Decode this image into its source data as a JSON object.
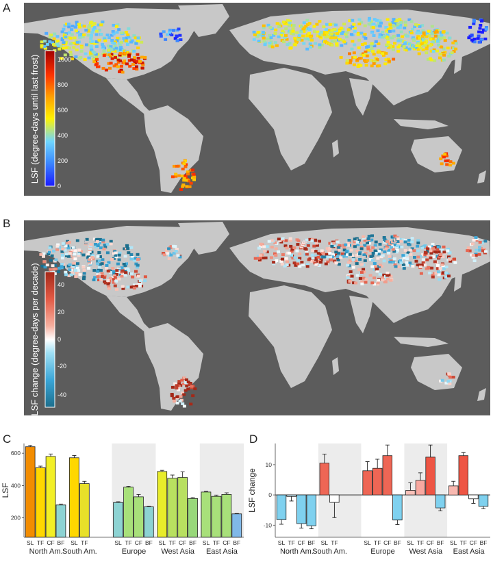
{
  "panels": {
    "a": "A",
    "b": "B",
    "c": "C",
    "d": "D"
  },
  "colors": {
    "ocean": "#5c5c5c",
    "land": "#c8c8c8",
    "no_data_bg": "#ececec"
  },
  "map_a": {
    "legend_title": "LSF (degree-days until last frost)",
    "legend_ticks": [
      "0",
      "200",
      "400",
      "600",
      "800",
      "1000"
    ],
    "legend_range": [
      0,
      1050
    ],
    "colormap": [
      "#1a1aff",
      "#3d8dff",
      "#6fd6ff",
      "#fff200",
      "#ffa000",
      "#ff3300",
      "#a30000"
    ]
  },
  "map_b": {
    "legend_title": "LSF change (degree-days per decade)",
    "legend_ticks": [
      "-40",
      "-20",
      "0",
      "20",
      "40"
    ],
    "legend_range": [
      -48,
      48
    ],
    "colormap": [
      "#1c6e8c",
      "#3aa6d8",
      "#9fe0f5",
      "#ffffff",
      "#f6b0a0",
      "#e35a45",
      "#a32818"
    ]
  },
  "chart_data": [
    {
      "type": "bar",
      "panel": "C",
      "ylabel": "LSF",
      "y_ticks": [
        200,
        400,
        600
      ],
      "ylim": [
        80,
        660
      ],
      "groups": [
        {
          "region": "North Am.",
          "categories": [
            "SL",
            "TF",
            "CF",
            "BF"
          ],
          "values": [
            640,
            510,
            580,
            280
          ],
          "errors": [
            8,
            10,
            15,
            5
          ],
          "colors": [
            "#f28c00",
            "#ffd700",
            "#f2ef26",
            "#8dd3d3"
          ]
        },
        {
          "region": "South Am.",
          "categories": [
            "SL",
            "TF"
          ],
          "values": [
            572,
            412
          ],
          "errors": [
            14,
            14
          ],
          "colors": [
            "#ffd700",
            "#e8e02a"
          ]
        },
        {
          "region": "Europe",
          "categories": [
            "SL",
            "TF",
            "CF",
            "BF"
          ],
          "values": [
            295,
            390,
            330,
            268
          ],
          "errors": [
            5,
            5,
            15,
            4
          ],
          "colors": [
            "#8dd3d3",
            "#a8e07a",
            "#a8e07a",
            "#8dd3d3"
          ]
        },
        {
          "region": "West Asia",
          "categories": [
            "SL",
            "TF",
            "CF",
            "BF"
          ],
          "values": [
            487,
            445,
            450,
            320
          ],
          "errors": [
            7,
            20,
            35,
            5
          ],
          "colors": [
            "#e8ec2a",
            "#b8e060",
            "#b8e060",
            "#98d87a"
          ]
        },
        {
          "region": "East Asia",
          "categories": [
            "SL",
            "TF",
            "CF",
            "BF"
          ],
          "values": [
            360,
            333,
            345,
            225
          ],
          "errors": [
            4,
            8,
            10,
            2
          ],
          "colors": [
            "#a8e07a",
            "#a8e07a",
            "#a8e07a",
            "#80b8e8"
          ]
        }
      ]
    },
    {
      "type": "bar",
      "panel": "D",
      "ylabel": "LSF change",
      "y_ticks": [
        -10,
        0,
        10
      ],
      "ylim": [
        -14,
        17
      ],
      "groups": [
        {
          "region": "North Am.",
          "categories": [
            "SL",
            "TF",
            "CF",
            "BF"
          ],
          "values": [
            -8.2,
            -0.5,
            -9.5,
            -10.2
          ],
          "errors": [
            1.5,
            1.5,
            1.5,
            1.0
          ],
          "colors": [
            "#7fd1ef",
            "#c8ecf8",
            "#7fd1ef",
            "#7fd1ef"
          ]
        },
        {
          "region": "South Am.",
          "categories": [
            "SL",
            "TF"
          ],
          "values": [
            10.5,
            -2.5
          ],
          "errors": [
            3.0,
            5.0
          ],
          "colors": [
            "#ee6655",
            "#ffffff"
          ]
        },
        {
          "region": "Europe",
          "categories": [
            "SL",
            "TF",
            "CF",
            "BF"
          ],
          "values": [
            8.0,
            8.8,
            13.0,
            -8.3
          ],
          "errors": [
            3.0,
            3.0,
            3.5,
            1.5
          ],
          "colors": [
            "#ee6655",
            "#ee6655",
            "#ee6655",
            "#7fd1ef"
          ]
        },
        {
          "region": "West Asia",
          "categories": [
            "SL",
            "TF",
            "CF",
            "BF"
          ],
          "values": [
            1.5,
            4.8,
            12.5,
            -4.3
          ],
          "errors": [
            2.5,
            2.5,
            4.0,
            1.0
          ],
          "colors": [
            "#f8c0b8",
            "#f8a8a0",
            "#ee5544",
            "#7fd1ef"
          ]
        },
        {
          "region": "East Asia",
          "categories": [
            "SL",
            "TF",
            "CF",
            "BF"
          ],
          "values": [
            3.0,
            13.0,
            -1.3,
            -3.8
          ],
          "errors": [
            1.5,
            1.0,
            1.5,
            0.8
          ],
          "colors": [
            "#f8b8b0",
            "#ee5544",
            "#ffffff",
            "#7fd1ef"
          ]
        }
      ]
    }
  ]
}
